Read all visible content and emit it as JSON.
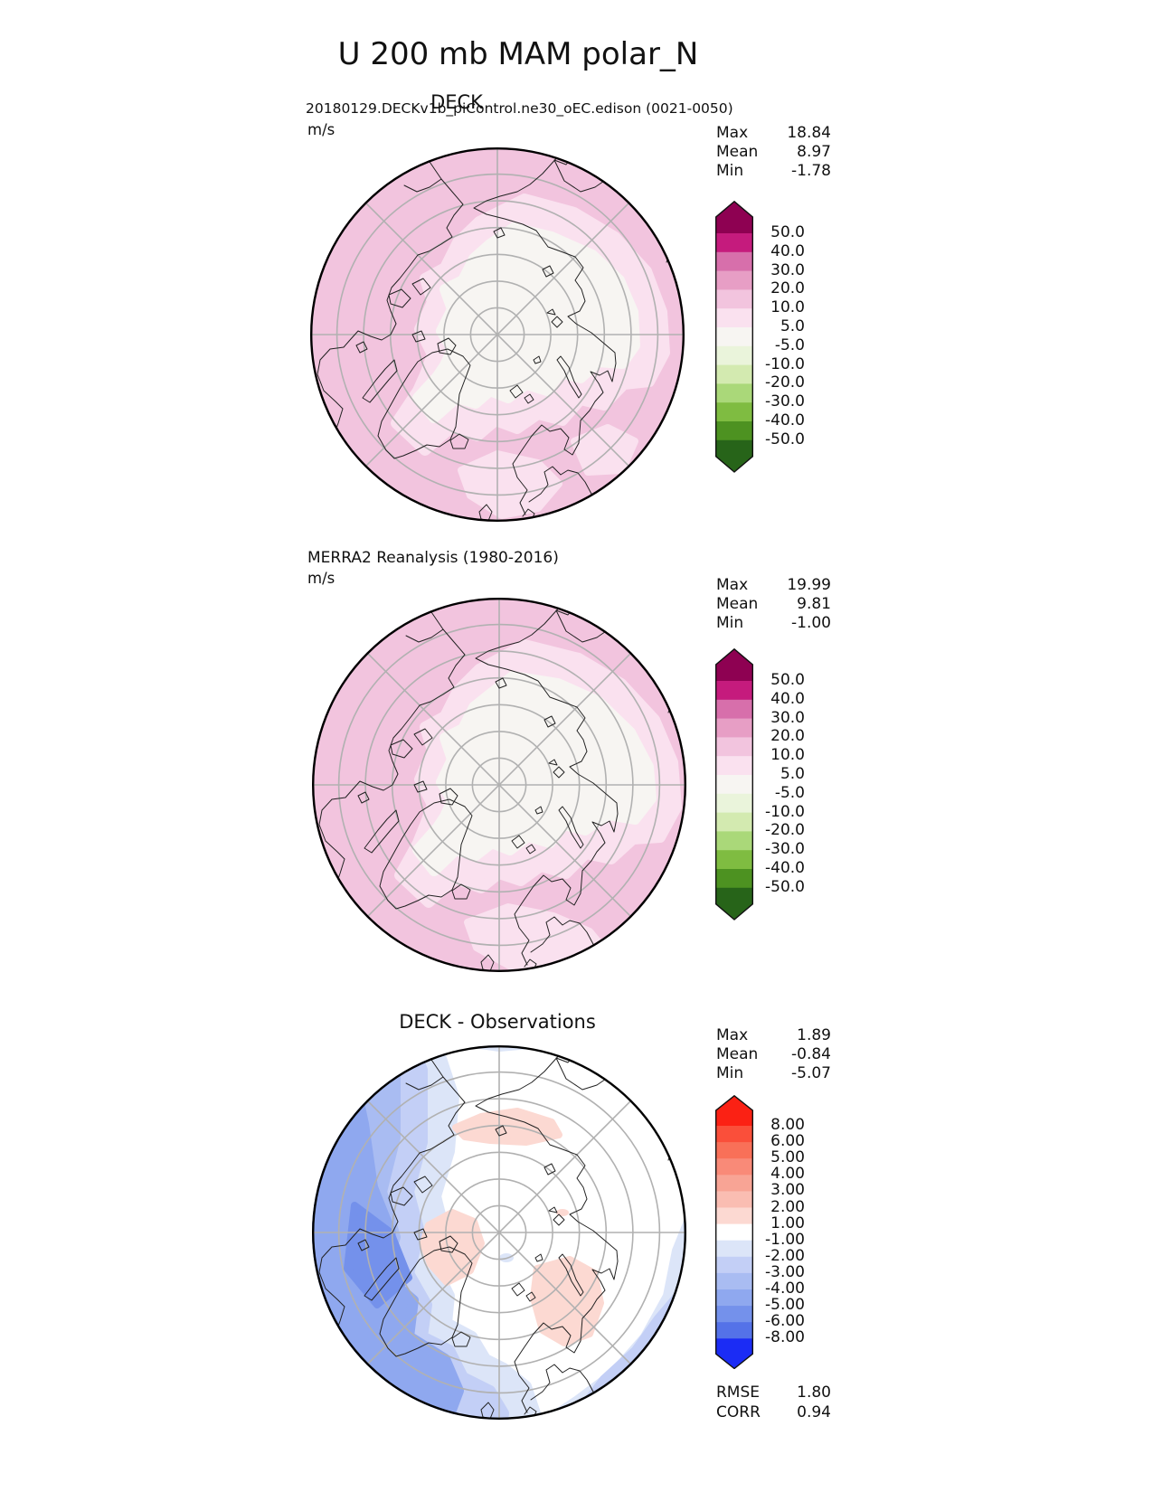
{
  "title": "U 200 mb MAM polar_N",
  "panels": [
    {
      "title": "DECK",
      "info": "20180129.DECKv1b_piControl.ne30_oEC.edison (0021-0050)",
      "units": "m/s",
      "stats": {
        "max_label": "Max",
        "max": "18.84",
        "mean_label": "Mean",
        "mean": "8.97",
        "min_label": "Min",
        "min": "-1.78"
      }
    },
    {
      "title": "MERRA2 Reanalysis (1980-2016)",
      "units": "m/s",
      "stats": {
        "max_label": "Max",
        "max": "19.99",
        "mean_label": "Mean",
        "mean": "9.81",
        "min_label": "Min",
        "min": "-1.00"
      }
    },
    {
      "title": "DECK - Observations",
      "stats": {
        "max_label": "Max",
        "max": "1.89",
        "mean_label": "Mean",
        "mean": "-0.84",
        "min_label": "Min",
        "min": "-5.07"
      },
      "metrics": {
        "rmse_label": "RMSE",
        "rmse": "1.80",
        "corr_label": "CORR",
        "corr": "0.94"
      }
    }
  ],
  "colorbars": {
    "piyg": {
      "labels": [
        "50.0",
        "40.0",
        "30.0",
        "20.0",
        "10.0",
        "5.0",
        "-5.0",
        "-10.0",
        "-20.0",
        "-30.0",
        "-40.0",
        "-50.0"
      ],
      "colors": [
        "#8e0152",
        "#c51b7d",
        "#d76fab",
        "#e79ec5",
        "#f2c4de",
        "#fae1ef",
        "#f7f5f2",
        "#eaf4db",
        "#d3eab0",
        "#aad879",
        "#7fbc41",
        "#4d9221",
        "#276419"
      ]
    },
    "rdbu": {
      "labels": [
        "8.00",
        "6.00",
        "5.00",
        "4.00",
        "3.00",
        "2.00",
        "1.00",
        "-1.00",
        "-2.00",
        "-3.00",
        "-4.00",
        "-5.00",
        "-6.00",
        "-8.00"
      ],
      "colors": [
        "#fb2114",
        "#fa4f3a",
        "#f97058",
        "#f98a78",
        "#f8a495",
        "#fabdb2",
        "#fcd9d2",
        "#ffffff",
        "#dce5f8",
        "#c3cff6",
        "#a9bcf2",
        "#8fa8ef",
        "#7491eb",
        "#5472e8",
        "#1b2cf5"
      ]
    }
  },
  "chart_data": {
    "type": "heatmap",
    "subtype": "polar_stereographic_contour_maps",
    "title": "U 200 mb MAM polar_N",
    "panels": [
      {
        "name": "DECK",
        "source": "20180129.DECKv1b_piControl.ne30_oEC.edison (0021-0050)",
        "units": "m/s",
        "max": 18.84,
        "mean": 8.97,
        "min": -1.78,
        "contour_levels": [
          -50,
          -40,
          -30,
          -20,
          -10,
          -5,
          5,
          10,
          20,
          30,
          40,
          50
        ],
        "colormap": "pink-white-green diverging"
      },
      {
        "name": "MERRA2 Reanalysis (1980-2016)",
        "units": "m/s",
        "max": 19.99,
        "mean": 9.81,
        "min": -1.0,
        "contour_levels": [
          -50,
          -40,
          -30,
          -20,
          -10,
          -5,
          5,
          10,
          20,
          30,
          40,
          50
        ],
        "colormap": "pink-white-green diverging"
      },
      {
        "name": "DECK - Observations",
        "max": 1.89,
        "mean": -0.84,
        "min": -5.07,
        "rmse": 1.8,
        "corr": 0.94,
        "contour_levels": [
          -8,
          -6,
          -5,
          -4,
          -3,
          -2,
          -1,
          1,
          2,
          3,
          4,
          5,
          6,
          8
        ],
        "colormap": "red-white-blue diverging"
      }
    ]
  }
}
